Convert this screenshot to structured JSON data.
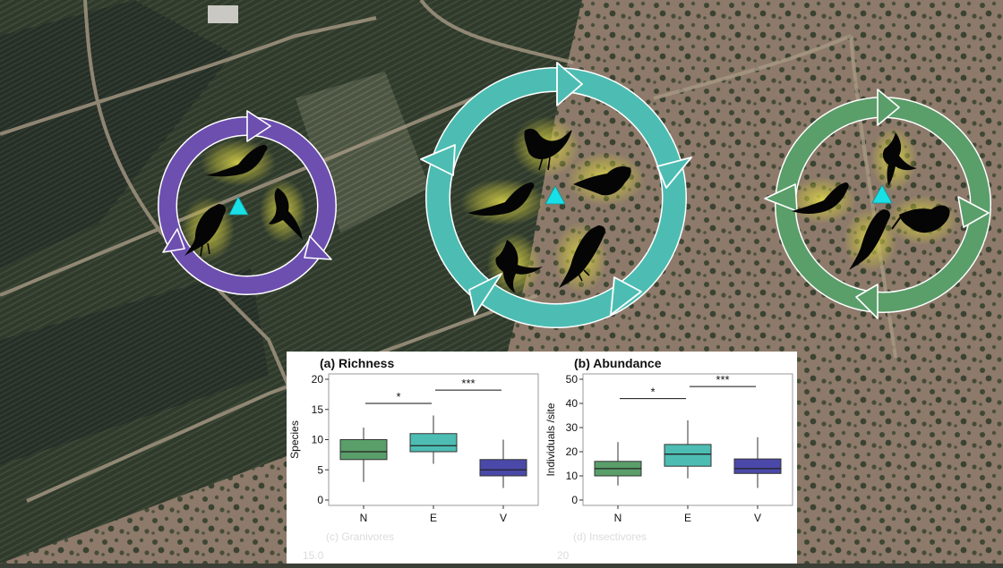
{
  "colors": {
    "vineyard_circle": "#6d4fb0",
    "edge_circle": "#4dbdb3",
    "native_circle": "#5a9e6a",
    "point_marker": "#17e0e6",
    "glow": "#d8d24a",
    "N": "#5a9e6a",
    "E": "#4dbdb3",
    "V": "#4a48a8"
  },
  "scene": {
    "circles": [
      {
        "name": "vineyard-circle",
        "color": "#6d4fb0",
        "icon": "cycle-arrows-icon",
        "birds": [
          "dove-icon",
          "swallow-icon",
          "blackbird-icon"
        ]
      },
      {
        "name": "edge-circle",
        "color": "#4dbdb3",
        "icon": "cycle-arrows-icon",
        "birds": [
          "thrush-icon",
          "finch-icon",
          "dove-icon",
          "swallow-icon",
          "blackbird-icon"
        ]
      },
      {
        "name": "native-circle",
        "color": "#5a9e6a",
        "icon": "cycle-arrows-icon",
        "birds": [
          "swallow-icon",
          "dove-icon",
          "finch-icon",
          "blackbird-icon"
        ]
      }
    ]
  },
  "chart_data": [
    {
      "type": "boxplot",
      "title": "(a) Richness",
      "ylabel": "Species",
      "categories": [
        "N",
        "E",
        "V"
      ],
      "ylim": [
        0,
        20
      ],
      "yticks": [
        0,
        5,
        10,
        15,
        20
      ],
      "boxes": [
        {
          "cat": "N",
          "min": 3,
          "q1": 6.7,
          "median": 8,
          "q3": 10,
          "max": 12,
          "color": "#5a9e6a"
        },
        {
          "cat": "E",
          "min": 6,
          "q1": 8,
          "median": 9,
          "q3": 11,
          "max": 14,
          "color": "#4dbdb3"
        },
        {
          "cat": "V",
          "min": 2,
          "q1": 4,
          "median": 5,
          "q3": 6.7,
          "max": 10,
          "color": "#4a48a8"
        }
      ],
      "significance": [
        {
          "from": "N",
          "to": "E",
          "label": "*",
          "y": 16
        },
        {
          "from": "E",
          "to": "V",
          "label": "***",
          "y": 18.2
        }
      ]
    },
    {
      "type": "boxplot",
      "title": "(b) Abundance",
      "ylabel": "Individuals /site",
      "categories": [
        "N",
        "E",
        "V"
      ],
      "ylim": [
        0,
        50
      ],
      "yticks": [
        0,
        10,
        20,
        30,
        40,
        50
      ],
      "boxes": [
        {
          "cat": "N",
          "min": 6,
          "q1": 10,
          "median": 13,
          "q3": 16,
          "max": 24,
          "color": "#5a9e6a"
        },
        {
          "cat": "E",
          "min": 9,
          "q1": 14,
          "median": 19,
          "q3": 23,
          "max": 33,
          "color": "#4dbdb3"
        },
        {
          "cat": "V",
          "min": 5,
          "q1": 11,
          "median": 13,
          "q3": 17,
          "max": 26,
          "color": "#4a48a8"
        }
      ],
      "significance": [
        {
          "from": "N",
          "to": "E",
          "label": "*",
          "y": 42
        },
        {
          "from": "E",
          "to": "V",
          "label": "***",
          "y": 47
        }
      ]
    }
  ],
  "cut_off": {
    "left_title": "(c) Granivores",
    "left_tick": "15.0",
    "right_title": "(d) Insectivores",
    "right_tick": "20"
  }
}
